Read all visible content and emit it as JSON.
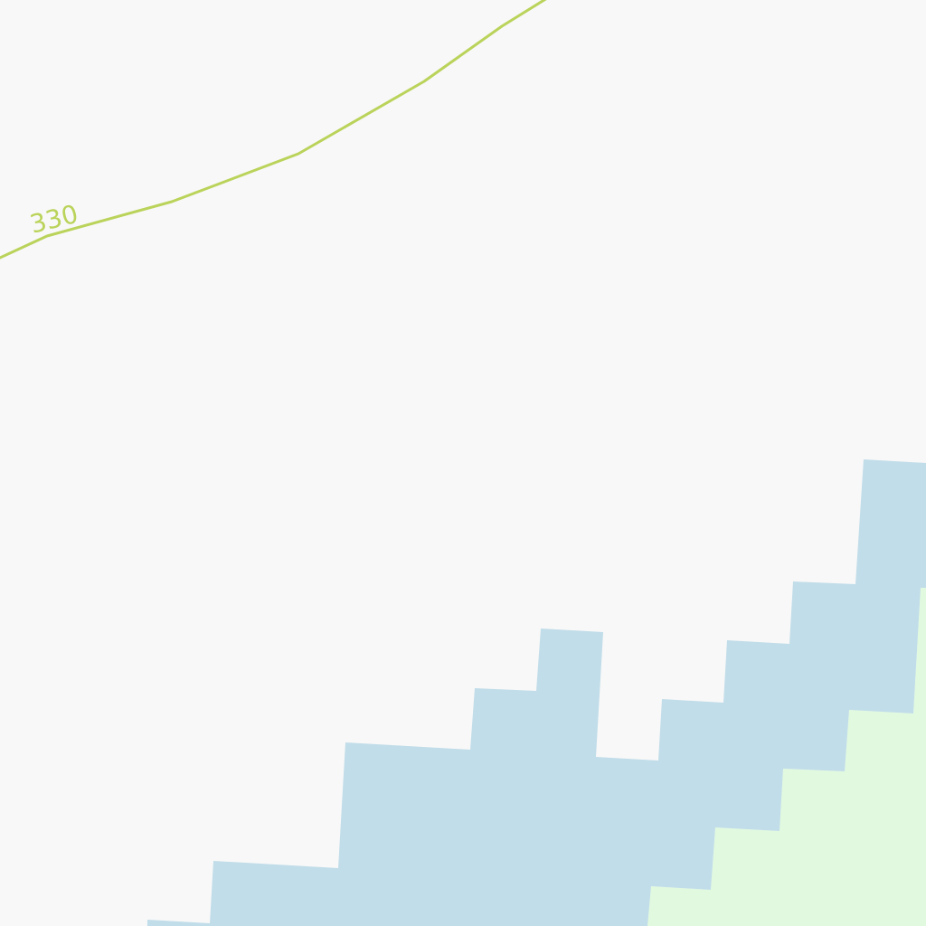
{
  "map": {
    "colors": {
      "background": "#f8f8f8",
      "water": "#c1dde9",
      "vegetation": "#e1f9df",
      "contour": "#bad35a"
    },
    "contour_line": {
      "elevation_label": "330"
    }
  }
}
